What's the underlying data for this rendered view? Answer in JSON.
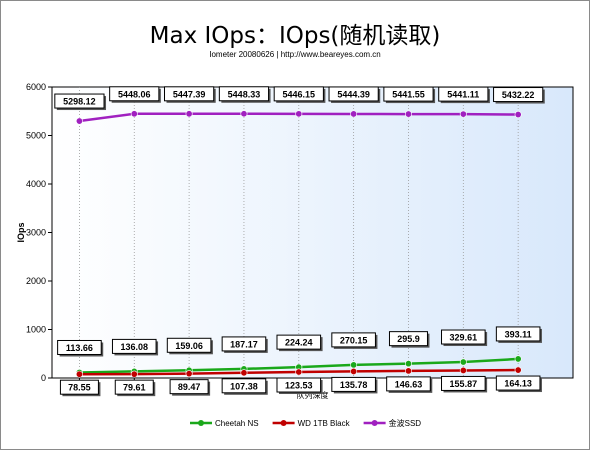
{
  "chart_data": {
    "type": "line",
    "title": "Max IOps：IOps(随机读取)",
    "subtitle": "Iometer 20080626 | http://www.beareyes.com.cn",
    "xlabel": "队列深度",
    "ylabel": "IOps",
    "ylim": [
      0,
      6000
    ],
    "yticks": [
      0,
      1000,
      2000,
      3000,
      4000,
      5000,
      6000
    ],
    "grid": "vertical dotted",
    "legend_position": "bottom",
    "series": [
      {
        "name": "Cheetah NS",
        "color": "#1aa81a",
        "values": [
          113.66,
          136.08,
          159.06,
          187.17,
          224.24,
          270.15,
          295.9,
          329.61,
          393.11
        ]
      },
      {
        "name": "WD 1TB Black",
        "color": "#c00000",
        "values": [
          78.55,
          79.61,
          89.47,
          107.38,
          123.53,
          135.78,
          146.63,
          155.87,
          164.13
        ]
      },
      {
        "name": "金波SSD",
        "color": "#a020c0",
        "values": [
          5298.12,
          5448.06,
          5447.39,
          5448.33,
          5446.15,
          5444.39,
          5441.55,
          5441.11,
          5432.22
        ]
      }
    ]
  }
}
